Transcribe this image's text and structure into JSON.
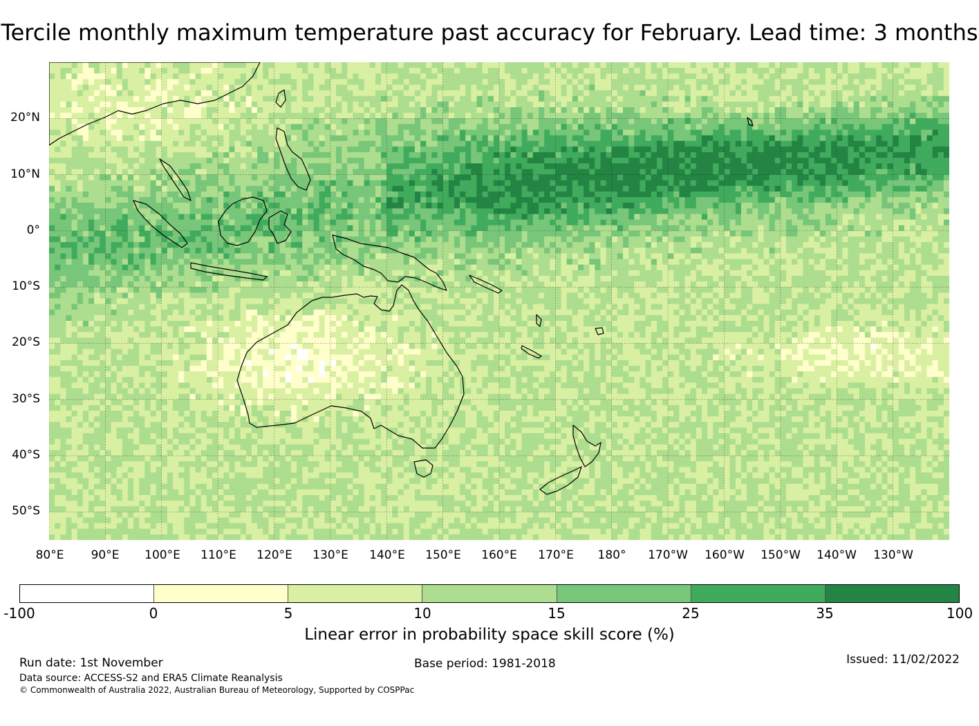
{
  "title": "Tercile monthly maximum temperature past accuracy for February. Lead time: 3 months",
  "map": {
    "lat_ticks": [
      "20°N",
      "10°N",
      "0°",
      "10°S",
      "20°S",
      "30°S",
      "40°S",
      "50°S"
    ],
    "lon_ticks": [
      "80°E",
      "90°E",
      "100°E",
      "110°E",
      "120°E",
      "130°E",
      "140°E",
      "150°E",
      "160°E",
      "170°E",
      "180°",
      "170°W",
      "160°W",
      "150°W",
      "140°W",
      "130°W"
    ],
    "lat_range": [
      -55,
      30
    ],
    "lon_range": [
      80,
      240
    ]
  },
  "colorbar": {
    "colors": [
      "#ffffff",
      "#ffffcc",
      "#d9f0a3",
      "#addd8e",
      "#78c679",
      "#41ab5d",
      "#238443"
    ],
    "ticks": [
      "-100",
      "0",
      "5",
      "10",
      "15",
      "25",
      "35",
      "100"
    ],
    "label": "Linear error in probability space skill score (%)"
  },
  "footer": {
    "run_date": "Run date: 1st November",
    "base_period": "Base period: 1981-2018",
    "issued": "Issued: 11/02/2022",
    "data_source": "Data source: ACCESS-S2 and ERA5 Climate Reanalysis",
    "copyright": "© Commonwealth of Australia 2022, Australian Bureau of Meteorology, Supported by COSPPac"
  }
}
